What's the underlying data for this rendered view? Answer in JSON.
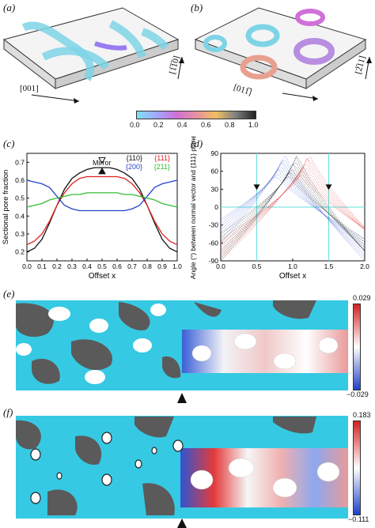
{
  "panels": {
    "a": {
      "label": "(a)",
      "dir1": "[001]",
      "dir2": "[1̅1̅0]"
    },
    "b": {
      "label": "(b)",
      "dir1": "[011̅]",
      "dir2": "[2̅11]"
    },
    "colorbar": {
      "ticks": [
        "0.0",
        "0.2",
        "0.4",
        "0.6",
        "0.8",
        "1.0"
      ],
      "colors": [
        "#7fe0ef",
        "#a0a8ff",
        "#d070d8",
        "#e890a0",
        "#f0c060",
        "#808080",
        "#202020"
      ]
    },
    "c": {
      "label": "(c)",
      "annotation": "Mirror"
    },
    "d": {
      "label": "(d)"
    },
    "e": {
      "label": "(e)",
      "scale_max": "0.029",
      "scale_min": "−0.029"
    },
    "f": {
      "label": "(f)",
      "scale_max": "0.183",
      "scale_min": "−0.111"
    }
  },
  "chart_data": [
    {
      "panel": "c",
      "type": "line",
      "xlabel": "Offset x",
      "ylabel": "Sectional pore fraction",
      "xlim": [
        0.0,
        1.0
      ],
      "ylim": [
        0.15,
        0.75
      ],
      "xticks": [
        "0.0",
        "0.1",
        "0.2",
        "0.3",
        "0.4",
        "0.5",
        "0.6",
        "0.7",
        "0.8",
        "0.9",
        "1.0"
      ],
      "yticks": [
        "0.2",
        "0.3",
        "0.4",
        "0.5",
        "0.6",
        "0.7"
      ],
      "legend": "top-right",
      "series": [
        {
          "name": "{110}",
          "color": "#111111",
          "x": [
            0,
            0.05,
            0.1,
            0.15,
            0.2,
            0.25,
            0.3,
            0.35,
            0.4,
            0.45,
            0.5,
            0.55,
            0.6,
            0.65,
            0.7,
            0.75,
            0.8,
            0.85,
            0.9,
            0.95,
            1.0
          ],
          "y": [
            0.2,
            0.22,
            0.27,
            0.36,
            0.46,
            0.55,
            0.61,
            0.64,
            0.66,
            0.67,
            0.67,
            0.67,
            0.66,
            0.64,
            0.61,
            0.55,
            0.46,
            0.36,
            0.27,
            0.22,
            0.2
          ]
        },
        {
          "name": "{111}",
          "color": "#dd2222",
          "x": [
            0,
            0.05,
            0.1,
            0.15,
            0.2,
            0.25,
            0.3,
            0.35,
            0.4,
            0.45,
            0.5,
            0.55,
            0.6,
            0.65,
            0.7,
            0.75,
            0.8,
            0.85,
            0.9,
            0.95,
            1.0
          ],
          "y": [
            0.24,
            0.26,
            0.3,
            0.37,
            0.46,
            0.53,
            0.58,
            0.61,
            0.62,
            0.62,
            0.62,
            0.62,
            0.62,
            0.61,
            0.58,
            0.53,
            0.46,
            0.37,
            0.3,
            0.26,
            0.24
          ]
        },
        {
          "name": "{200}",
          "color": "#2244cc",
          "x": [
            0,
            0.05,
            0.1,
            0.15,
            0.2,
            0.25,
            0.3,
            0.35,
            0.4,
            0.45,
            0.5,
            0.55,
            0.6,
            0.65,
            0.7,
            0.75,
            0.8,
            0.85,
            0.9,
            0.95,
            1.0
          ],
          "y": [
            0.6,
            0.59,
            0.58,
            0.56,
            0.51,
            0.46,
            0.44,
            0.43,
            0.43,
            0.43,
            0.43,
            0.43,
            0.43,
            0.43,
            0.44,
            0.46,
            0.51,
            0.56,
            0.58,
            0.59,
            0.6
          ]
        },
        {
          "name": "{211}",
          "color": "#33bb33",
          "x": [
            0,
            0.05,
            0.1,
            0.15,
            0.2,
            0.25,
            0.3,
            0.35,
            0.4,
            0.45,
            0.5,
            0.55,
            0.6,
            0.65,
            0.7,
            0.75,
            0.8,
            0.85,
            0.9,
            0.95,
            1.0
          ],
          "y": [
            0.45,
            0.46,
            0.47,
            0.49,
            0.5,
            0.51,
            0.52,
            0.52,
            0.53,
            0.53,
            0.53,
            0.53,
            0.53,
            0.52,
            0.52,
            0.51,
            0.5,
            0.49,
            0.47,
            0.46,
            0.45
          ]
        }
      ],
      "markers": [
        {
          "x": 0.5,
          "y": 0.7,
          "style": "open-triangle"
        },
        {
          "x": 0.5,
          "y": 0.64,
          "style": "filled-triangle"
        }
      ]
    },
    {
      "panel": "d",
      "type": "scatter",
      "xlabel": "Offset x",
      "ylabel": "Angle (°) between normal vector and {111} plane",
      "xlim": [
        0.0,
        2.0
      ],
      "ylim": [
        -90,
        90
      ],
      "xticks": [
        "0.0",
        "0.5",
        "1.0",
        "1.5",
        "2.0"
      ],
      "yticks": [
        "-90",
        "-60",
        "-30",
        "0",
        "30",
        "60",
        "90"
      ],
      "reference_lines": {
        "x": [
          0.5,
          1.5
        ],
        "y": [
          0
        ],
        "color": "#66dddd"
      },
      "series": [
        {
          "name": "",
          "color": "#3355cc",
          "center": 0.83,
          "depth_min": -90
        },
        {
          "name": "",
          "color": "#dd3333",
          "center": 1.17,
          "depth_min": -90
        },
        {
          "name": "",
          "color": "#111111",
          "center": 1.0,
          "depth_min": -90
        }
      ],
      "markers": [
        {
          "x": 0.5,
          "y": 30,
          "style": "filled-triangle"
        },
        {
          "x": 1.5,
          "y": 30,
          "style": "filled-triangle"
        }
      ]
    }
  ]
}
